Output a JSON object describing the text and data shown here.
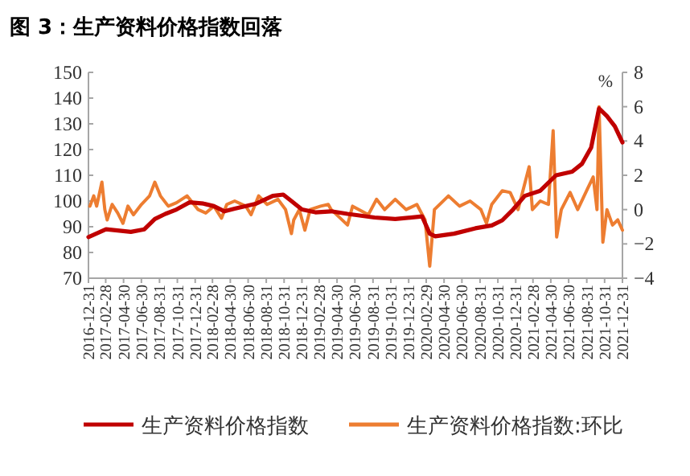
{
  "chart_data": {
    "type": "line",
    "title": "图 3：生产资料价格指数回落",
    "y2label": "%",
    "legend": "bottom",
    "xlim": [
      "2016-12-31",
      "2021-12-31"
    ],
    "xticks": [
      "2016-12-31",
      "2017-02-28",
      "2017-04-30",
      "2017-06-30",
      "2017-08-31",
      "2017-10-31",
      "2017-12-31",
      "2018-02-28",
      "2018-04-30",
      "2018-06-30",
      "2018-08-31",
      "2018-10-31",
      "2018-12-31",
      "2019-02-28",
      "2019-04-30",
      "2019-06-30",
      "2019-08-31",
      "2019-10-31",
      "2019-12-31",
      "2020-02-29",
      "2020-04-30",
      "2020-06-30",
      "2020-08-31",
      "2020-10-31",
      "2020-12-31",
      "2021-02-28",
      "2021-04-30",
      "2021-06-30",
      "2021-08-31",
      "2021-10-31",
      "2021-12-31"
    ],
    "ylim": [
      70,
      150
    ],
    "yticks": [
      70,
      80,
      90,
      100,
      110,
      120,
      130,
      140,
      150
    ],
    "y2lim": [
      -4,
      8
    ],
    "y2ticks": [
      -4,
      -2,
      0,
      2,
      4,
      6,
      8
    ],
    "series": [
      {
        "name": "生产资料价格指数",
        "color": "#c00000",
        "x": [
          "2016-12-31",
          "2017-03-01",
          "2017-05-25",
          "2017-07-10",
          "2017-08-15",
          "2017-09-20",
          "2017-10-28",
          "2017-12-12",
          "2018-01-28",
          "2018-03-05",
          "2018-04-10",
          "2018-05-15",
          "2018-07-28",
          "2018-09-22",
          "2018-10-28",
          "2018-11-25",
          "2018-12-31",
          "2019-02-15",
          "2019-04-10",
          "2019-06-05",
          "2019-09-05",
          "2019-11-15",
          "2020-02-15",
          "2020-03-12",
          "2020-03-31",
          "2020-06-03",
          "2020-08-15",
          "2020-10-10",
          "2020-11-15",
          "2020-12-22",
          "2021-01-31",
          "2021-03-25",
          "2021-05-18",
          "2021-07-12",
          "2021-08-15",
          "2021-09-15",
          "2021-10-12",
          "2021-11-08",
          "2021-12-05",
          "2021-12-31"
        ],
        "values": [
          86,
          89,
          88,
          89,
          93,
          95,
          96.7,
          99.5,
          99,
          98,
          96,
          97,
          99,
          102,
          102.5,
          100,
          96.7,
          95.6,
          96,
          95,
          93.6,
          93,
          94,
          87.3,
          86.3,
          87.3,
          89.4,
          90.5,
          92.5,
          96.7,
          102,
          104,
          110,
          111.4,
          114.5,
          120.8,
          136,
          133,
          129,
          122.8
        ]
      },
      {
        "name": "生产资料价格指数:环比",
        "color": "#ed7d31",
        "axis": "y2",
        "x": [
          "2017-01-05",
          "2017-01-18",
          "2017-01-28",
          "2017-02-15",
          "2017-02-25",
          "2017-03-05",
          "2017-03-22",
          "2017-04-10",
          "2017-04-28",
          "2017-05-15",
          "2017-06-03",
          "2017-06-30",
          "2017-07-28",
          "2017-08-15",
          "2017-09-03",
          "2017-09-30",
          "2017-10-28",
          "2017-12-03",
          "2018-01-10",
          "2018-02-05",
          "2018-03-05",
          "2018-03-31",
          "2018-04-18",
          "2018-05-15",
          "2018-06-22",
          "2018-07-10",
          "2018-08-05",
          "2018-09-03",
          "2018-10-10",
          "2018-11-05",
          "2018-11-25",
          "2018-12-03",
          "2018-12-22",
          "2019-01-10",
          "2019-01-28",
          "2019-03-05",
          "2019-03-31",
          "2019-04-10",
          "2019-06-05",
          "2019-06-22",
          "2019-08-15",
          "2019-09-12",
          "2019-10-10",
          "2019-11-15",
          "2019-12-22",
          "2020-01-28",
          "2020-02-25",
          "2020-03-12",
          "2020-03-28",
          "2020-05-15",
          "2020-06-22",
          "2020-07-28",
          "2020-09-03",
          "2020-09-22",
          "2020-10-10",
          "2020-11-15",
          "2020-12-12",
          "2021-01-08",
          "2021-02-15",
          "2021-02-26",
          "2021-03-25",
          "2021-04-22",
          "2021-05-08",
          "2021-05-20",
          "2021-06-05",
          "2021-07-05",
          "2021-07-31",
          "2021-09-05",
          "2021-09-22",
          "2021-10-05",
          "2021-10-12",
          "2021-10-25",
          "2021-11-08",
          "2021-11-27",
          "2021-12-15",
          "2021-12-31"
        ],
        "values": [
          0.2,
          0.8,
          0.2,
          1.6,
          0,
          -0.6,
          0.3,
          -0.2,
          -0.8,
          0.2,
          -0.3,
          0.3,
          0.8,
          1.6,
          0.8,
          0.2,
          0.4,
          0.8,
          0,
          -0.2,
          0.2,
          -0.5,
          0.3,
          0.5,
          0.2,
          -0.3,
          0.8,
          0.3,
          0.6,
          0,
          -1.4,
          -0.6,
          0,
          -1.2,
          0,
          0.2,
          0.3,
          0,
          -0.9,
          0.2,
          -0.3,
          0.6,
          0,
          0.6,
          0,
          0.3,
          -0.6,
          -3.3,
          0,
          0.8,
          0.2,
          0.5,
          0,
          -0.8,
          0.3,
          1.1,
          1,
          0,
          2.5,
          0,
          0.5,
          0.3,
          4.6,
          -1.6,
          0,
          1,
          0,
          1.3,
          1.9,
          0,
          6,
          -1.9,
          0,
          -0.9,
          -0.6,
          -1.2
        ]
      }
    ]
  }
}
